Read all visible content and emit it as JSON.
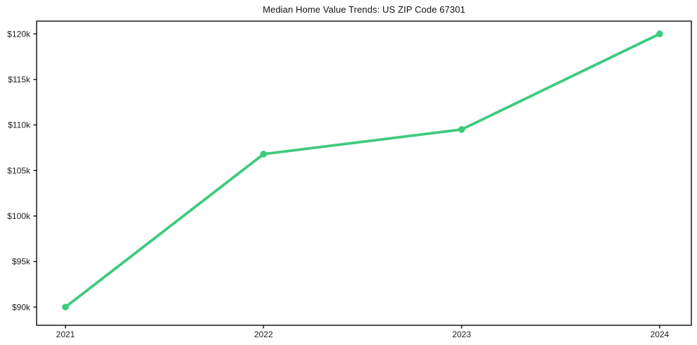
{
  "page": {
    "background_color": "#ffffff"
  },
  "chart_data": {
    "type": "line",
    "title": "Median Home Value Trends: US ZIP Code 67301",
    "categories": [
      "2021",
      "2022",
      "2023",
      "2024"
    ],
    "series": [
      {
        "name": "Median Home Value",
        "values": [
          90000,
          106800,
          109500,
          120000
        ]
      }
    ],
    "xlabel": "",
    "ylabel": "",
    "ylim": [
      88000,
      121400
    ],
    "yticks": [
      90000,
      95000,
      100000,
      105000,
      110000,
      115000,
      120000
    ],
    "ytick_labels": [
      "$90k",
      "$95k",
      "$100k",
      "$105k",
      "$110k",
      "$115k",
      "$120k"
    ],
    "grid": false,
    "legend_position": "none",
    "line_color": "#3dcb7d",
    "marker": "circle",
    "axis_color": "#1a1a1a",
    "text_color": "#222222"
  }
}
